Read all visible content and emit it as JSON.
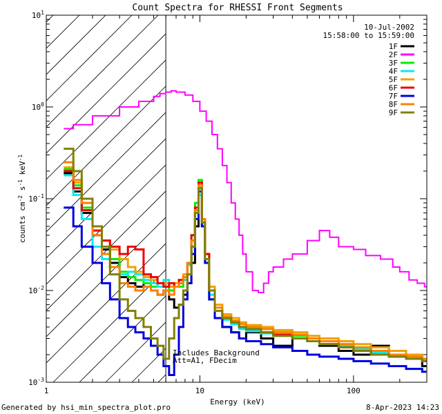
{
  "chart_data": {
    "type": "line",
    "title": "Count Spectra for RHESSI Front Segments",
    "xlabel": "Energy (keV)",
    "ylabel_parts": [
      "counts cm",
      "-2",
      " s",
      "-1",
      " keV",
      "-1"
    ],
    "xscale": "log",
    "yscale": "log",
    "xlim": [
      1,
      300
    ],
    "ylim": [
      0.001,
      10
    ],
    "x_ticks": [
      {
        "v": 1,
        "label": "1"
      },
      {
        "v": 10,
        "label": "10"
      },
      {
        "v": 100,
        "label": "100"
      }
    ],
    "y_ticks": [
      {
        "v": 0.001,
        "base": "10",
        "exp": "-3"
      },
      {
        "v": 0.01,
        "base": "10",
        "exp": "-2"
      },
      {
        "v": 0.1,
        "base": "10",
        "exp": "-1"
      },
      {
        "v": 1,
        "base": "10",
        "exp": "0"
      },
      {
        "v": 10,
        "base": "10",
        "exp": "1"
      }
    ],
    "shaded_region_x": [
      1,
      6
    ],
    "date": "10-Jul-2002",
    "time_range": "15:58:00 to 15:59:00",
    "annotations": [
      "Includes Background",
      "Att=A1, FDecim"
    ],
    "series": [
      {
        "name": "2F",
        "color": "#ff00ff",
        "x": [
          1.3,
          1.5,
          2.0,
          3.0,
          4.0,
          5.0,
          5.5,
          6.0,
          6.5,
          7.0,
          8.0,
          9.0,
          10.0,
          11.0,
          12.0,
          13.0,
          14.0,
          15.0,
          16.0,
          17.0,
          18.0,
          19.0,
          20.0,
          22.0,
          24.0,
          26.0,
          28.0,
          30.0,
          35.0,
          40.0,
          50.0,
          60.0,
          70.0,
          80.0,
          100.0,
          120.0,
          150.0,
          180.0,
          200.0,
          230.0,
          260.0,
          290.0
        ],
        "y": [
          0.58,
          0.64,
          0.8,
          1.0,
          1.15,
          1.3,
          1.4,
          1.45,
          1.5,
          1.45,
          1.35,
          1.15,
          0.9,
          0.7,
          0.5,
          0.35,
          0.23,
          0.15,
          0.09,
          0.06,
          0.04,
          0.025,
          0.016,
          0.01,
          0.0095,
          0.012,
          0.016,
          0.018,
          0.022,
          0.025,
          0.035,
          0.045,
          0.038,
          0.03,
          0.028,
          0.024,
          0.022,
          0.018,
          0.016,
          0.013,
          0.012,
          0.011
        ]
      },
      {
        "name": "1F",
        "color": "#000000",
        "x": [
          1.3,
          1.5,
          1.7,
          2.0,
          2.3,
          2.6,
          3.0,
          3.4,
          3.8,
          4.3,
          4.8,
          5.3,
          5.8,
          6.3,
          6.8,
          7.3,
          7.8,
          8.3,
          8.8,
          9.3,
          9.8,
          10.3,
          10.8,
          11.5,
          12.5,
          14.0,
          16.0,
          18.0,
          20.0,
          25.0,
          30.0,
          40.0,
          50.0,
          60.0,
          80.0,
          100.0,
          130.0,
          170.0,
          220.0,
          280.0
        ],
        "y": [
          0.19,
          0.12,
          0.07,
          0.04,
          0.028,
          0.02,
          0.014,
          0.012,
          0.011,
          0.012,
          0.01,
          0.009,
          0.01,
          0.008,
          0.0065,
          0.007,
          0.009,
          0.012,
          0.02,
          0.05,
          0.13,
          0.05,
          0.02,
          0.008,
          0.005,
          0.004,
          0.0035,
          0.003,
          0.0035,
          0.003,
          0.0025,
          0.003,
          0.0028,
          0.0025,
          0.0022,
          0.002,
          0.0025,
          0.002,
          0.0018,
          0.0015
        ]
      },
      {
        "name": "3F",
        "color": "#00ee00",
        "x": [
          1.3,
          1.5,
          1.7,
          2.0,
          2.3,
          2.6,
          3.0,
          3.4,
          3.8,
          4.3,
          4.8,
          5.3,
          5.8,
          6.3,
          6.8,
          7.3,
          7.8,
          8.3,
          8.8,
          9.3,
          9.8,
          10.3,
          10.8,
          11.5,
          12.5,
          14.0,
          16.0,
          18.0,
          20.0,
          25.0,
          30.0,
          40.0,
          50.0,
          60.0,
          80.0,
          100.0,
          130.0,
          170.0,
          220.0,
          280.0
        ],
        "y": [
          0.21,
          0.14,
          0.08,
          0.045,
          0.03,
          0.022,
          0.016,
          0.014,
          0.013,
          0.012,
          0.011,
          0.012,
          0.011,
          0.01,
          0.012,
          0.011,
          0.013,
          0.02,
          0.04,
          0.09,
          0.16,
          0.06,
          0.025,
          0.01,
          0.006,
          0.005,
          0.0045,
          0.004,
          0.004,
          0.0038,
          0.0035,
          0.0032,
          0.003,
          0.0028,
          0.0026,
          0.0024,
          0.0022,
          0.002,
          0.0019,
          0.0018
        ]
      },
      {
        "name": "4F",
        "color": "#00eeee",
        "x": [
          1.3,
          1.5,
          1.7,
          2.0,
          2.3,
          2.6,
          3.0,
          3.4,
          3.8,
          4.3,
          4.8,
          5.3,
          5.8,
          6.3,
          6.8,
          7.3,
          7.8,
          8.3,
          8.8,
          9.3,
          9.8,
          10.3,
          10.8,
          11.5,
          12.5,
          14.0,
          16.0,
          18.0,
          20.0,
          25.0,
          30.0,
          40.0,
          50.0,
          60.0,
          80.0,
          100.0,
          130.0,
          170.0,
          220.0,
          280.0
        ],
        "y": [
          0.18,
          0.11,
          0.06,
          0.03,
          0.022,
          0.018,
          0.015,
          0.016,
          0.015,
          0.013,
          0.012,
          0.011,
          0.013,
          0.011,
          0.012,
          0.012,
          0.013,
          0.019,
          0.03,
          0.06,
          0.11,
          0.05,
          0.022,
          0.009,
          0.006,
          0.0048,
          0.0043,
          0.0038,
          0.0036,
          0.0034,
          0.0032,
          0.003,
          0.0028,
          0.0026,
          0.0025,
          0.0023,
          0.0021,
          0.002,
          0.0018,
          0.0017
        ]
      },
      {
        "name": "5F",
        "color": "#f0a000",
        "x": [
          1.3,
          1.5,
          1.7,
          2.0,
          2.3,
          2.6,
          3.0,
          3.4,
          3.8,
          4.3,
          4.8,
          5.3,
          5.8,
          6.3,
          6.8,
          7.3,
          7.8,
          8.3,
          8.8,
          9.3,
          9.8,
          10.3,
          10.8,
          11.5,
          12.5,
          14.0,
          16.0,
          18.0,
          20.0,
          25.0,
          30.0,
          40.0,
          50.0,
          60.0,
          80.0,
          100.0,
          130.0,
          170.0,
          220.0,
          280.0
        ],
        "y": [
          0.22,
          0.15,
          0.09,
          0.05,
          0.035,
          0.028,
          0.022,
          0.018,
          0.016,
          0.014,
          0.013,
          0.012,
          0.012,
          0.011,
          0.012,
          0.013,
          0.015,
          0.02,
          0.035,
          0.07,
          0.14,
          0.06,
          0.025,
          0.011,
          0.007,
          0.0055,
          0.005,
          0.0045,
          0.0042,
          0.004,
          0.0037,
          0.0035,
          0.0032,
          0.003,
          0.0028,
          0.0026,
          0.0024,
          0.0022,
          0.002,
          0.0018
        ]
      },
      {
        "name": "6F",
        "color": "#ee0000",
        "x": [
          1.3,
          1.5,
          1.7,
          2.0,
          2.3,
          2.6,
          3.0,
          3.4,
          3.8,
          4.3,
          4.8,
          5.3,
          5.8,
          6.3,
          6.8,
          7.3,
          7.8,
          8.3,
          8.8,
          9.3,
          9.8,
          10.3,
          10.8,
          11.5,
          12.5,
          14.0,
          16.0,
          18.0,
          20.0,
          25.0,
          30.0,
          40.0,
          50.0,
          60.0,
          80.0,
          100.0,
          130.0,
          170.0,
          220.0,
          280.0
        ],
        "y": [
          0.2,
          0.13,
          0.075,
          0.045,
          0.035,
          0.03,
          0.025,
          0.03,
          0.028,
          0.015,
          0.014,
          0.012,
          0.011,
          0.012,
          0.011,
          0.013,
          0.014,
          0.02,
          0.04,
          0.08,
          0.15,
          0.06,
          0.025,
          0.01,
          0.006,
          0.005,
          0.0045,
          0.004,
          0.0038,
          0.0035,
          0.0033,
          0.003,
          0.0028,
          0.0026,
          0.0024,
          0.0022,
          0.002,
          0.0019,
          0.0018,
          0.0017
        ]
      },
      {
        "name": "7F",
        "color": "#0000dd",
        "x": [
          1.3,
          1.5,
          1.7,
          2.0,
          2.3,
          2.6,
          3.0,
          3.4,
          3.8,
          4.3,
          4.8,
          5.3,
          5.8,
          6.3,
          6.8,
          7.3,
          7.8,
          8.3,
          8.8,
          9.3,
          9.8,
          10.3,
          10.8,
          11.5,
          12.5,
          14.0,
          16.0,
          18.0,
          20.0,
          25.0,
          30.0,
          40.0,
          50.0,
          60.0,
          80.0,
          100.0,
          130.0,
          170.0,
          220.0,
          280.0
        ],
        "y": [
          0.08,
          0.05,
          0.03,
          0.02,
          0.012,
          0.008,
          0.005,
          0.004,
          0.0035,
          0.003,
          0.0025,
          0.002,
          0.0015,
          0.0012,
          0.002,
          0.004,
          0.008,
          0.012,
          0.025,
          0.06,
          0.12,
          0.05,
          0.02,
          0.008,
          0.005,
          0.004,
          0.0035,
          0.003,
          0.0028,
          0.0026,
          0.0024,
          0.0022,
          0.002,
          0.0019,
          0.0018,
          0.0017,
          0.0016,
          0.0015,
          0.0014,
          0.0013
        ]
      },
      {
        "name": "8F",
        "color": "#ff8000",
        "x": [
          1.3,
          1.5,
          1.7,
          2.0,
          2.3,
          2.6,
          3.0,
          3.4,
          3.8,
          4.3,
          4.8,
          5.3,
          5.8,
          6.3,
          6.8,
          7.3,
          7.8,
          8.3,
          8.8,
          9.3,
          9.8,
          10.3,
          10.8,
          11.5,
          12.5,
          14.0,
          16.0,
          18.0,
          20.0,
          25.0,
          30.0,
          40.0,
          50.0,
          60.0,
          80.0,
          100.0,
          130.0,
          170.0,
          220.0,
          280.0
        ],
        "y": [
          0.25,
          0.16,
          0.09,
          0.04,
          0.025,
          0.018,
          0.012,
          0.011,
          0.01,
          0.011,
          0.01,
          0.009,
          0.01,
          0.009,
          0.011,
          0.012,
          0.014,
          0.02,
          0.035,
          0.075,
          0.14,
          0.06,
          0.022,
          0.01,
          0.0065,
          0.0052,
          0.0047,
          0.0043,
          0.004,
          0.0038,
          0.0035,
          0.0033,
          0.003,
          0.0028,
          0.0026,
          0.0024,
          0.0022,
          0.002,
          0.0019,
          0.0018
        ]
      },
      {
        "name": "9F",
        "color": "#808000",
        "x": [
          1.3,
          1.5,
          1.7,
          2.0,
          2.3,
          2.6,
          3.0,
          3.4,
          3.8,
          4.3,
          4.8,
          5.3,
          5.8,
          6.3,
          6.8,
          7.3,
          7.8,
          8.3,
          8.8,
          9.3,
          9.8,
          10.3,
          10.8,
          11.5,
          12.5,
          14.0,
          16.0,
          18.0,
          20.0,
          25.0,
          30.0,
          40.0,
          50.0,
          60.0,
          80.0,
          100.0,
          130.0,
          170.0,
          220.0,
          280.0
        ],
        "y": [
          0.35,
          0.2,
          0.1,
          0.05,
          0.03,
          0.015,
          0.008,
          0.006,
          0.005,
          0.004,
          0.003,
          0.0025,
          0.0018,
          0.003,
          0.005,
          0.007,
          0.01,
          0.015,
          0.03,
          0.07,
          0.13,
          0.055,
          0.022,
          0.01,
          0.006,
          0.005,
          0.0045,
          0.004,
          0.0038,
          0.0035,
          0.0032,
          0.003,
          0.0028,
          0.0026,
          0.0024,
          0.0022,
          0.002,
          0.0019,
          0.0018,
          0.0017
        ]
      }
    ],
    "legend_order": [
      "1F",
      "2F",
      "3F",
      "4F",
      "5F",
      "6F",
      "7F",
      "8F",
      "9F"
    ]
  },
  "footer": {
    "left": "Generated by hsi_min_spectra_plot.pro",
    "right": "8-Apr-2023 14:23"
  }
}
